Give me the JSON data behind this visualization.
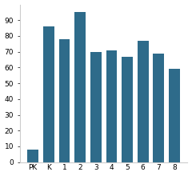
{
  "categories": [
    "PK",
    "K",
    "1",
    "2",
    "3",
    "4",
    "5",
    "6",
    "7",
    "8"
  ],
  "values": [
    8,
    86,
    78,
    95,
    70,
    71,
    67,
    77,
    69,
    59
  ],
  "bar_color": "#2e6b8a",
  "background_color": "#ffffff",
  "ylim": [
    0,
    100
  ],
  "yticks": [
    0,
    10,
    20,
    30,
    40,
    50,
    60,
    70,
    80,
    90
  ],
  "tick_fontsize": 6.5,
  "bar_width": 0.7
}
